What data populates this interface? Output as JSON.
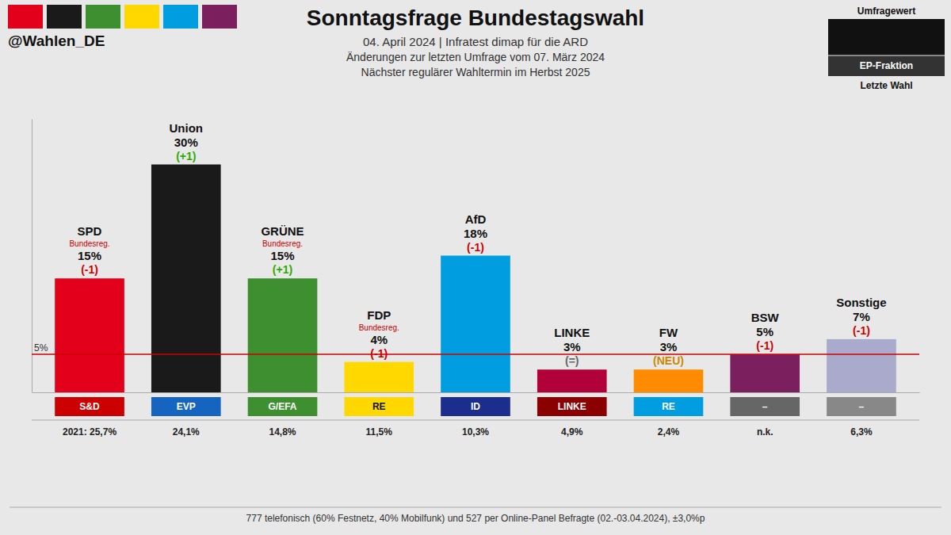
{
  "chart_data": {
    "type": "bar",
    "title": "Sonntagsfrage Bundestagswahl",
    "subtitle": [
      "04. April 2024  |  Infratest dimap für die ARD",
      "Änderungen zur letzten Umfrage vom 07. März 2024",
      "Nächster regulärer Wahltermin im Herbst 2025"
    ],
    "watermark": "@Wahlen_DE",
    "footer": "777 telefonisch (60% Festnetz, 40% Mobilfunk) und 527 per Online-Panel Befragte (02.-03.04.2024), ±3,0%p",
    "row_labels": [
      "Umfragewert",
      "EP-Fraktion",
      "Letzte Wahl"
    ],
    "background_color": "#e8e8e8",
    "header_colors": [
      "#E2001A",
      "#1a1a1a",
      "#3d8f2f",
      "#FFD800",
      "#009EE0",
      "#7B1F5E"
    ],
    "categories": [
      "SPD",
      "Union",
      "GRÜNE",
      "FDP",
      "AfD",
      "LINKE",
      "FW",
      "BSW",
      "Sonstige"
    ],
    "values": [
      15,
      30,
      15,
      4,
      18,
      3,
      3,
      5,
      7
    ],
    "value_labels": [
      "15%",
      "30%",
      "15%",
      "4%",
      "18%",
      "3%",
      "3%",
      "5%",
      "7%"
    ],
    "colors": [
      "#E2001A",
      "#1a1a1a",
      "#3d8f2f",
      "#FFD800",
      "#009EE0",
      "#B2003A",
      "#FF8C00",
      "#7B1F5E",
      "#aaaacc"
    ],
    "sublabels": [
      "Bundesreg.",
      null,
      "Bundesreg.",
      "Bundesreg.",
      null,
      null,
      null,
      null,
      null
    ],
    "changes": [
      "(-1)",
      "(+1)",
      "(+1)",
      "(-1)",
      "(-1)",
      "(=)",
      "(NEU)",
      "(-1)",
      "(-1)"
    ],
    "change_colors": [
      "#cc0000",
      "#2daa00",
      "#2daa00",
      "#cc0000",
      "#cc0000",
      "#666666",
      "#CC8800",
      "#cc0000",
      "#cc0000"
    ],
    "ep_labels": [
      "S&D",
      "EVP",
      "G/EFA",
      "RE",
      "ID",
      "LINKE",
      "RE",
      "–",
      "–"
    ],
    "ep_colors": [
      "#cc0000",
      "#1565C0",
      "#3d8f2f",
      "#FFD800",
      "#1B2E8E",
      "#8B0000",
      "#009EE0",
      "#666666",
      "#888888"
    ],
    "last_election": [
      "2021: 25,7%",
      "24,1%",
      "14,8%",
      "11,5%",
      "10,3%",
      "4,9%",
      "2,4%",
      "n.k.",
      "6,3%"
    ],
    "annotations": [
      {
        "type": "hline",
        "value": 5,
        "label": "5%",
        "color": "#cc0000"
      }
    ],
    "ylim": [
      0,
      36
    ],
    "data_labels": true,
    "tick_labels": false,
    "grid": false
  }
}
